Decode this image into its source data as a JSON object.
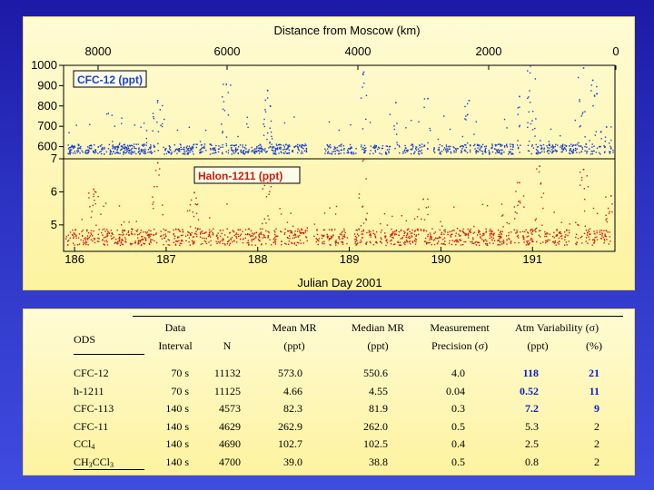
{
  "chart_data": [
    {
      "type": "scatter",
      "title": "",
      "x_top_label": "Distance from Moscow (km)",
      "x_top_ticks": [
        "8000",
        "6000",
        "4000",
        "2000",
        "0"
      ],
      "xlabel": "Julian Day 2001",
      "xlim": [
        185.88,
        191.9
      ],
      "x_ticks": [
        "186",
        "187",
        "188",
        "189",
        "190",
        "191"
      ],
      "grid": false,
      "panels": [
        {
          "series_name": "CFC-12 (ppt)",
          "color": "#1a3fd0",
          "ylim": [
            540,
            1000
          ],
          "y_ticks": [
            "600",
            "700",
            "800",
            "900",
            "1000"
          ],
          "baseline": 585,
          "typical_spread": 25,
          "gaps": [
            [
              188.53,
              188.73
            ],
            [
              190.86,
              190.94
            ]
          ],
          "peaks": [
            {
              "x": 186.9,
              "y": 830
            },
            {
              "x": 187.65,
              "y": 910
            },
            {
              "x": 188.1,
              "y": 880
            },
            {
              "x": 189.15,
              "y": 970
            },
            {
              "x": 189.5,
              "y": 820
            },
            {
              "x": 189.85,
              "y": 840
            },
            {
              "x": 190.3,
              "y": 830
            },
            {
              "x": 190.85,
              "y": 850
            },
            {
              "x": 190.97,
              "y": 1000
            },
            {
              "x": 191.55,
              "y": 990
            },
            {
              "x": 191.65,
              "y": 930
            },
            {
              "x": 191.8,
              "y": 700
            }
          ]
        },
        {
          "series_name": "Halon-1211 (ppt)",
          "color": "#cc1b10",
          "ylim": [
            4.2,
            7.0
          ],
          "y_ticks": [
            "5",
            "6",
            "7"
          ],
          "baseline": 4.6,
          "typical_spread": 0.25,
          "gaps": [
            [
              188.53,
              188.6
            ]
          ],
          "peaks": [
            {
              "x": 186.2,
              "y": 6.1
            },
            {
              "x": 186.9,
              "y": 6.9
            },
            {
              "x": 187.3,
              "y": 6.0
            },
            {
              "x": 188.1,
              "y": 6.3
            },
            {
              "x": 189.15,
              "y": 7.0
            },
            {
              "x": 189.8,
              "y": 5.8
            },
            {
              "x": 190.85,
              "y": 6.3
            },
            {
              "x": 191.07,
              "y": 6.8
            },
            {
              "x": 191.55,
              "y": 6.7
            },
            {
              "x": 191.85,
              "y": 5.9
            }
          ]
        }
      ]
    },
    {
      "type": "table",
      "columns": [
        {
          "label": "ODS"
        },
        {
          "label": "Data Interval",
          "line1": "Data",
          "line2": "Interval"
        },
        {
          "label": "N"
        },
        {
          "label": "Mean MR (ppt)",
          "line1": "Mean MR",
          "line2": "(ppt)"
        },
        {
          "label": "Median MR (ppt)",
          "line1": "Median MR",
          "line2": "(ppt)"
        },
        {
          "label": "Measurement Precision (σ)",
          "line1": "Measurement",
          "line2": "Precision (σ)"
        },
        {
          "label": "Atm Variability (σ)",
          "line1": "Atm Variability (σ)",
          "sub_ppt": "(ppt)",
          "sub_pct": "(%)"
        }
      ],
      "rows": [
        {
          "ods": "CFC-12",
          "interval": "70 s",
          "n": "11132",
          "mean": "573.0",
          "median": "550.6",
          "precision": "4.0",
          "var_ppt": "118",
          "var_pct": "21",
          "highlight": true
        },
        {
          "ods": "h-1211",
          "interval": "70 s",
          "n": "11125",
          "mean": "4.66",
          "median": "4.55",
          "precision": "0.04",
          "var_ppt": "0.52",
          "var_pct": "11",
          "highlight": true
        },
        {
          "ods": "CFC-113",
          "interval": "140 s",
          "n": "4573",
          "mean": "82.3",
          "median": "81.9",
          "precision": "0.3",
          "var_ppt": "7.2",
          "var_pct": "9",
          "highlight": true
        },
        {
          "ods": "CFC-11",
          "interval": "140 s",
          "n": "4629",
          "mean": "262.9",
          "median": "262.0",
          "precision": "0.5",
          "var_ppt": "5.3",
          "var_pct": "2",
          "highlight": false
        },
        {
          "ods": "CCl",
          "ods_sub": "4",
          "interval": "140 s",
          "n": "4690",
          "mean": "102.7",
          "median": "102.5",
          "precision": "0.4",
          "var_ppt": "2.5",
          "var_pct": "2",
          "highlight": false
        },
        {
          "ods": "CH",
          "ods_sub": "3",
          "ods_tail": "CCl",
          "ods_sub2": "3",
          "interval": "140 s",
          "n": "4700",
          "mean": "39.0",
          "median": "38.8",
          "precision": "0.5",
          "var_ppt": "0.8",
          "var_pct": "2",
          "highlight": false
        }
      ]
    }
  ]
}
